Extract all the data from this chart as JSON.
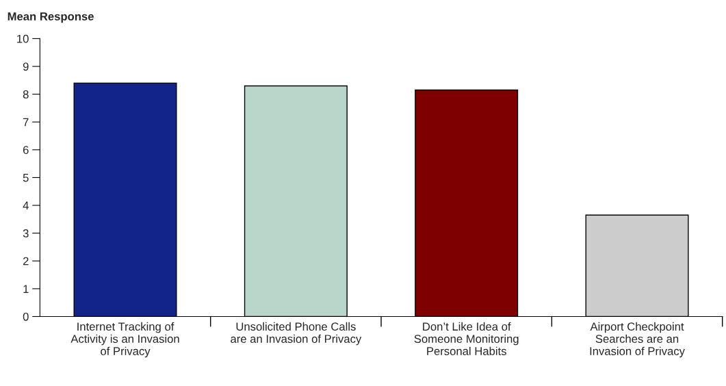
{
  "chart_data": {
    "type": "bar",
    "ylabel": "Mean Response",
    "categories": [
      "Internet Tracking of\nActivity is an Invasion\nof Privacy",
      "Unsolicited Phone Calls\nare an Invasion of Privacy",
      "Don’t Like Idea of\nSomeone Monitoring\nPersonal Habits",
      "Airport Checkpoint\nSearches are an\nInvasion of Privacy"
    ],
    "values": [
      8.4,
      8.3,
      8.15,
      3.65
    ],
    "colors": [
      "#12238a",
      "#b9d6ca",
      "#7f0000",
      "#cccccc"
    ],
    "ylim": [
      0,
      10
    ],
    "yticks": [
      0,
      1,
      2,
      3,
      4,
      5,
      6,
      7,
      8,
      9,
      10
    ],
    "grid": false,
    "legend": false
  }
}
